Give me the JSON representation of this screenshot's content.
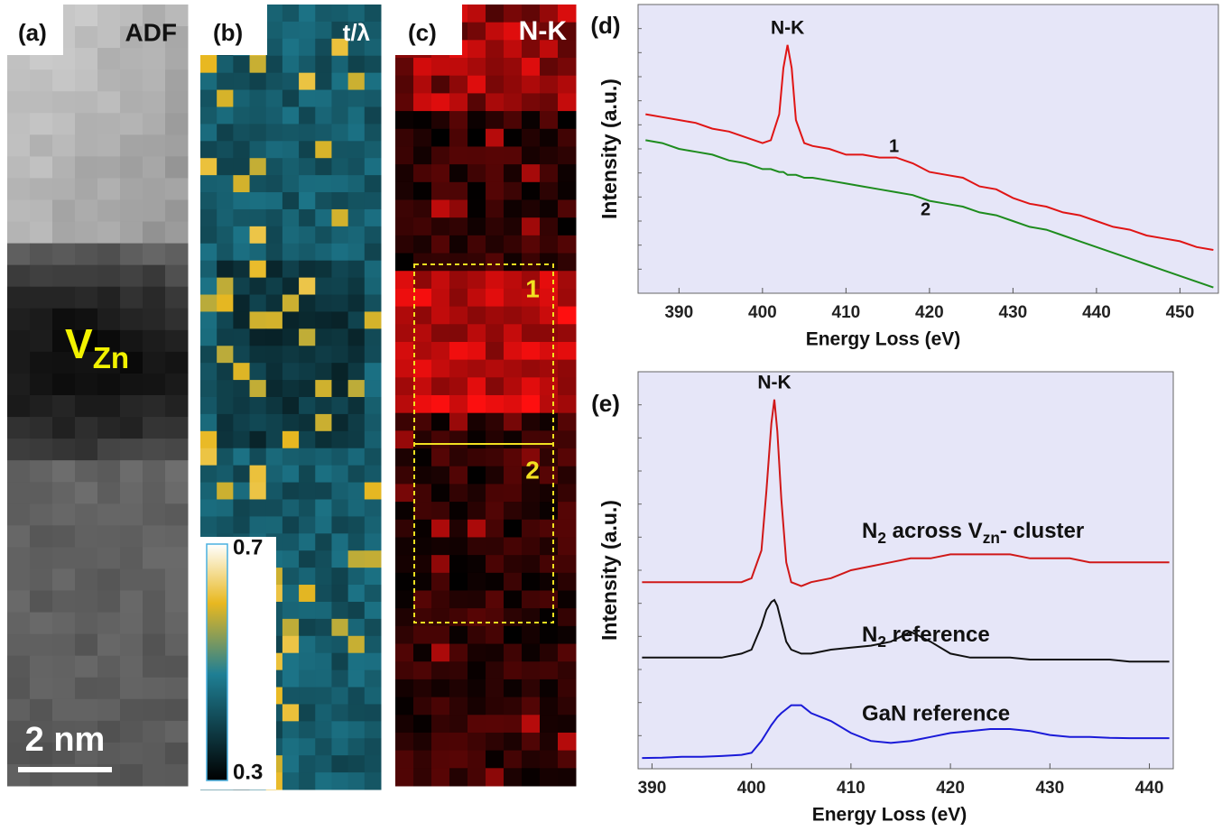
{
  "panels": [
    {
      "label": "(a)",
      "title": "ADF",
      "annotation": [
        "V",
        "Zn"
      ],
      "scale_bar": "2 nm"
    },
    {
      "label": "(b)",
      "title": "t/λ",
      "colorbar_ticks": [
        0.7,
        0.3
      ]
    },
    {
      "label": "(c)",
      "title": "N-K",
      "regions": [
        "1",
        "2"
      ]
    }
  ],
  "chart_data": [
    {
      "type": "line",
      "panel_label": "(d)",
      "peak_label": "N-K",
      "xlabel": "Energy Loss (eV)",
      "ylabel": "Intensity (a.u.)",
      "xlim": [
        385.1,
        454.6
      ],
      "xticks": [
        390,
        400,
        410,
        420,
        430,
        440,
        450
      ],
      "ylim": [
        0,
        100
      ],
      "x": [
        386,
        388,
        390,
        392,
        394,
        396,
        398,
        400,
        401,
        402,
        402.5,
        403,
        403.5,
        404,
        405,
        406,
        408,
        410,
        412,
        414,
        416,
        418,
        420,
        422,
        424,
        426,
        428,
        430,
        432,
        434,
        436,
        438,
        440,
        442,
        444,
        446,
        448,
        450,
        452,
        454
      ],
      "series": [
        {
          "name": "1",
          "color": "#e01515",
          "values": [
            62,
            61,
            60,
            59,
            57,
            56,
            54,
            52,
            53,
            62,
            78,
            86,
            78,
            60,
            52,
            51,
            50,
            48,
            48,
            47,
            47,
            45,
            42,
            41,
            40,
            37,
            36,
            33,
            31,
            30,
            28,
            27,
            25,
            23,
            22,
            20,
            19,
            18,
            16,
            15
          ]
        },
        {
          "name": "2",
          "color": "#1e8c1e",
          "values": [
            53,
            52,
            50,
            49,
            48,
            46,
            45,
            43,
            43,
            42,
            42,
            41,
            41,
            41,
            40,
            40,
            39,
            38,
            37,
            36,
            35,
            34,
            32,
            31,
            30,
            28,
            27,
            25,
            23,
            22,
            20,
            18,
            16,
            14,
            12,
            10,
            8,
            6,
            4,
            2
          ]
        }
      ]
    },
    {
      "type": "line",
      "panel_label": "(e)",
      "peak_label": "N-K",
      "xlabel": "Energy Loss (eV)",
      "ylabel": "Intensity (a.u.)",
      "xlim": [
        388.6,
        442.4
      ],
      "xticks": [
        390,
        400,
        410,
        420,
        430,
        440
      ],
      "ylim": [
        0,
        100
      ],
      "x": [
        389,
        391,
        393,
        395,
        397,
        399,
        400,
        401,
        401.5,
        402,
        402.3,
        402.6,
        403,
        403.5,
        404,
        405,
        406,
        408,
        410,
        412,
        414,
        416,
        418,
        420,
        422,
        424,
        426,
        428,
        430,
        432,
        434,
        436,
        438,
        440,
        442
      ],
      "series": [
        {
          "name": [
            "N",
            "2",
            " across V",
            "zn",
            "- cluster"
          ],
          "color": "#d01818",
          "values": [
            47,
            47,
            47,
            47,
            47,
            47,
            48,
            55,
            70,
            87,
            93,
            85,
            68,
            52,
            47,
            46,
            47,
            48,
            50,
            51,
            52,
            53,
            53,
            54,
            54,
            54,
            54,
            53,
            53,
            53,
            52,
            52,
            52,
            52,
            52
          ]
        },
        {
          "name": [
            "N",
            "2",
            " reference"
          ],
          "color": "#111111",
          "values": [
            28,
            28,
            28,
            28,
            28,
            29,
            30,
            36,
            40,
            42,
            42.5,
            41,
            37,
            32,
            30,
            29,
            29,
            30,
            30.5,
            31,
            32,
            34.5,
            32,
            29,
            28,
            28,
            28,
            27.5,
            27.5,
            27.5,
            27.5,
            27.5,
            27,
            27,
            27
          ]
        },
        {
          "name": "GaN reference",
          "color": "#1a1ad8",
          "values": [
            2.7,
            2.8,
            3,
            3,
            3.2,
            3.5,
            4,
            7,
            9,
            11,
            12,
            13,
            14,
            15,
            16,
            16,
            14,
            12,
            9,
            7,
            6.5,
            7,
            8,
            9,
            9.5,
            10,
            10,
            9.5,
            8.5,
            8,
            8,
            7.8,
            7.7,
            7.7,
            7.7
          ]
        }
      ]
    }
  ]
}
